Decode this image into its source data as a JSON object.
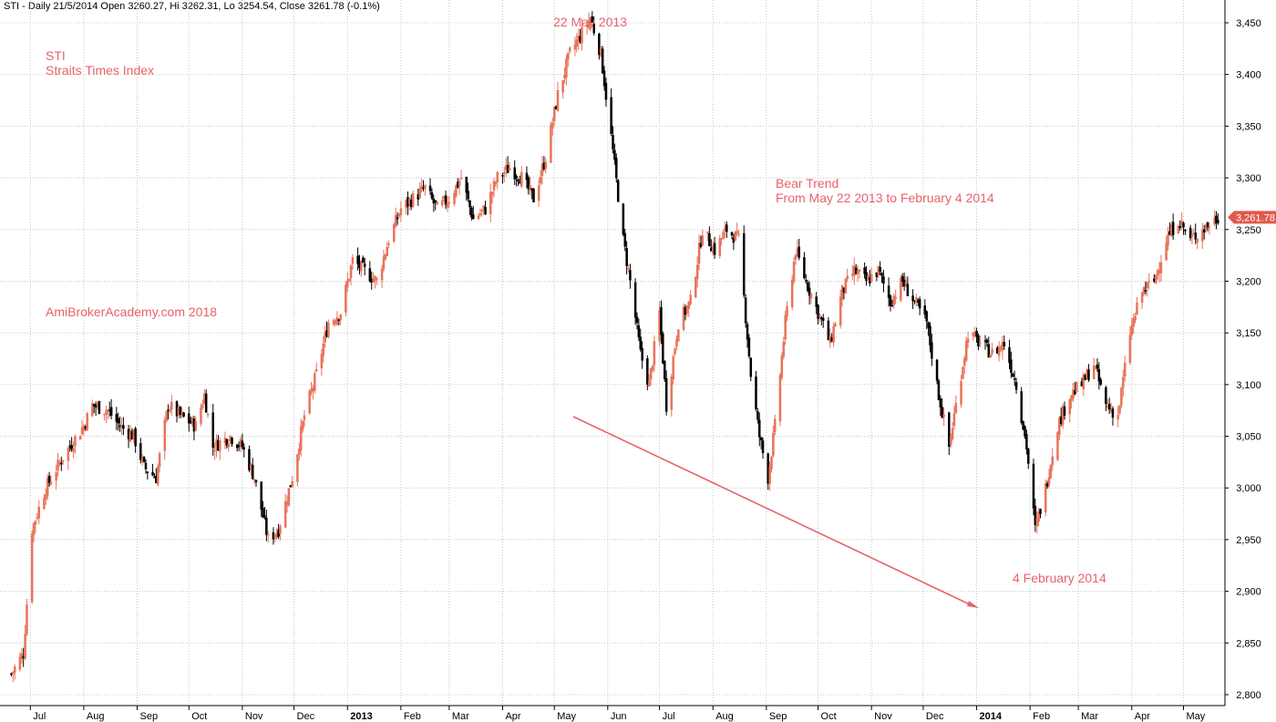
{
  "header": "STI - Daily 21/5/2014 Open 3260.27, Hi 3262.31, Lo 3254.54, Close 3261.78 (-0.1%)",
  "chart_data": {
    "type": "candlestick",
    "ticker": "STI",
    "name": "Straits Times Index",
    "watermark": "AmiBrokerAcademy.com  2018",
    "ylim": [
      2790,
      3475
    ],
    "yticks": [
      2800,
      2850,
      2900,
      2950,
      3000,
      3050,
      3100,
      3150,
      3200,
      3250,
      3300,
      3350,
      3400,
      3450
    ],
    "ytick_labels": [
      "2,800",
      "2,850",
      "2,900",
      "2,950",
      "3,000",
      "3,050",
      "3,100",
      "3,150",
      "3,200",
      "3,250",
      "3,300",
      "3,350",
      "3,400",
      "3,450"
    ],
    "grid": true,
    "last_price": 3261.78,
    "last_price_label": "3,261.78",
    "xticks": [
      "Jul",
      "Aug",
      "Sep",
      "Oct",
      "Nov",
      "Dec",
      "2013",
      "Feb",
      "Mar",
      "Apr",
      "May",
      "Jun",
      "Jul",
      "Aug",
      "Sep",
      "Oct",
      "Nov",
      "Dec",
      "2014",
      "Feb",
      "Mar",
      "Apr",
      "May"
    ],
    "xtick_bold": [
      "2013",
      "2014"
    ],
    "trajectory": [
      [
        "2012-06-20",
        2820
      ],
      [
        "2012-06-27",
        2840
      ],
      [
        "2012-07-02",
        2960
      ],
      [
        "2012-07-10",
        3000
      ],
      [
        "2012-07-20",
        3030
      ],
      [
        "2012-08-01",
        3060
      ],
      [
        "2012-08-06",
        3080
      ],
      [
        "2012-08-15",
        3075
      ],
      [
        "2012-08-22",
        3060
      ],
      [
        "2012-08-30",
        3050
      ],
      [
        "2012-09-05",
        3020
      ],
      [
        "2012-09-12",
        3010
      ],
      [
        "2012-09-19",
        3080
      ],
      [
        "2012-09-26",
        3070
      ],
      [
        "2012-10-05",
        3060
      ],
      [
        "2012-10-10",
        3090
      ],
      [
        "2012-10-15",
        3040
      ],
      [
        "2012-10-25",
        3050
      ],
      [
        "2012-11-01",
        3040
      ],
      [
        "2012-11-08",
        3010
      ],
      [
        "2012-11-16",
        2950
      ],
      [
        "2012-11-22",
        2960
      ],
      [
        "2012-11-30",
        3010
      ],
      [
        "2012-12-07",
        3070
      ],
      [
        "2012-12-14",
        3110
      ],
      [
        "2012-12-21",
        3160
      ],
      [
        "2012-12-28",
        3170
      ],
      [
        "2013-01-04",
        3220
      ],
      [
        "2013-01-11",
        3210
      ],
      [
        "2013-01-18",
        3200
      ],
      [
        "2013-01-25",
        3240
      ],
      [
        "2013-02-01",
        3270
      ],
      [
        "2013-02-08",
        3280
      ],
      [
        "2013-02-15",
        3290
      ],
      [
        "2013-02-22",
        3270
      ],
      [
        "2013-03-01",
        3280
      ],
      [
        "2013-03-08",
        3300
      ],
      [
        "2013-03-15",
        3260
      ],
      [
        "2013-03-22",
        3270
      ],
      [
        "2013-03-29",
        3300
      ],
      [
        "2013-04-05",
        3310
      ],
      [
        "2013-04-12",
        3300
      ],
      [
        "2013-04-19",
        3280
      ],
      [
        "2013-04-26",
        3320
      ],
      [
        "2013-05-03",
        3380
      ],
      [
        "2013-05-10",
        3420
      ],
      [
        "2013-05-17",
        3440
      ],
      [
        "2013-05-22",
        3455
      ],
      [
        "2013-05-28",
        3420
      ],
      [
        "2013-06-03",
        3340
      ],
      [
        "2013-06-10",
        3240
      ],
      [
        "2013-06-14",
        3200
      ],
      [
        "2013-06-20",
        3130
      ],
      [
        "2013-06-25",
        3100
      ],
      [
        "2013-07-01",
        3170
      ],
      [
        "2013-07-05",
        3080
      ],
      [
        "2013-07-12",
        3160
      ],
      [
        "2013-07-19",
        3180
      ],
      [
        "2013-07-26",
        3250
      ],
      [
        "2013-08-02",
        3230
      ],
      [
        "2013-08-09",
        3250
      ],
      [
        "2013-08-16",
        3240
      ],
      [
        "2013-08-23",
        3110
      ],
      [
        "2013-08-28",
        3050
      ],
      [
        "2013-09-02",
        3010
      ],
      [
        "2013-09-06",
        3060
      ],
      [
        "2013-09-12",
        3160
      ],
      [
        "2013-09-18",
        3230
      ],
      [
        "2013-09-24",
        3200
      ],
      [
        "2013-10-01",
        3170
      ],
      [
        "2013-10-08",
        3140
      ],
      [
        "2013-10-15",
        3190
      ],
      [
        "2013-10-22",
        3210
      ],
      [
        "2013-10-29",
        3200
      ],
      [
        "2013-11-05",
        3210
      ],
      [
        "2013-11-12",
        3180
      ],
      [
        "2013-11-19",
        3200
      ],
      [
        "2013-11-26",
        3180
      ],
      [
        "2013-12-03",
        3160
      ],
      [
        "2013-12-10",
        3090
      ],
      [
        "2013-12-16",
        3040
      ],
      [
        "2013-12-20",
        3080
      ],
      [
        "2013-12-27",
        3150
      ],
      [
        "2014-01-03",
        3140
      ],
      [
        "2014-01-10",
        3130
      ],
      [
        "2014-01-17",
        3140
      ],
      [
        "2014-01-24",
        3100
      ],
      [
        "2014-01-30",
        3040
      ],
      [
        "2014-02-04",
        2960
      ],
      [
        "2014-02-10",
        3000
      ],
      [
        "2014-02-17",
        3060
      ],
      [
        "2014-02-24",
        3090
      ],
      [
        "2014-03-03",
        3100
      ],
      [
        "2014-03-10",
        3120
      ],
      [
        "2014-03-17",
        3080
      ],
      [
        "2014-03-24",
        3070
      ],
      [
        "2014-03-31",
        3150
      ],
      [
        "2014-04-07",
        3190
      ],
      [
        "2014-04-14",
        3200
      ],
      [
        "2014-04-21",
        3240
      ],
      [
        "2014-04-28",
        3260
      ],
      [
        "2014-05-05",
        3240
      ],
      [
        "2014-05-12",
        3250
      ],
      [
        "2014-05-21",
        3261.78
      ]
    ]
  },
  "annotations": {
    "ticker": "STI",
    "name": "Straits Times Index",
    "watermark": "AmiBrokerAcademy.com  2018",
    "peak_label": "22 May 2013",
    "trend_title": "Bear Trend",
    "trend_sub": "From May 22 2013 to February 4 2014",
    "low_label": "4 February 2014"
  },
  "colors": {
    "bull": "#e8735a",
    "bear": "#000000",
    "accent": "#e8626a",
    "grid": "#c8c8c8",
    "price_tag": "#e05a4a"
  }
}
